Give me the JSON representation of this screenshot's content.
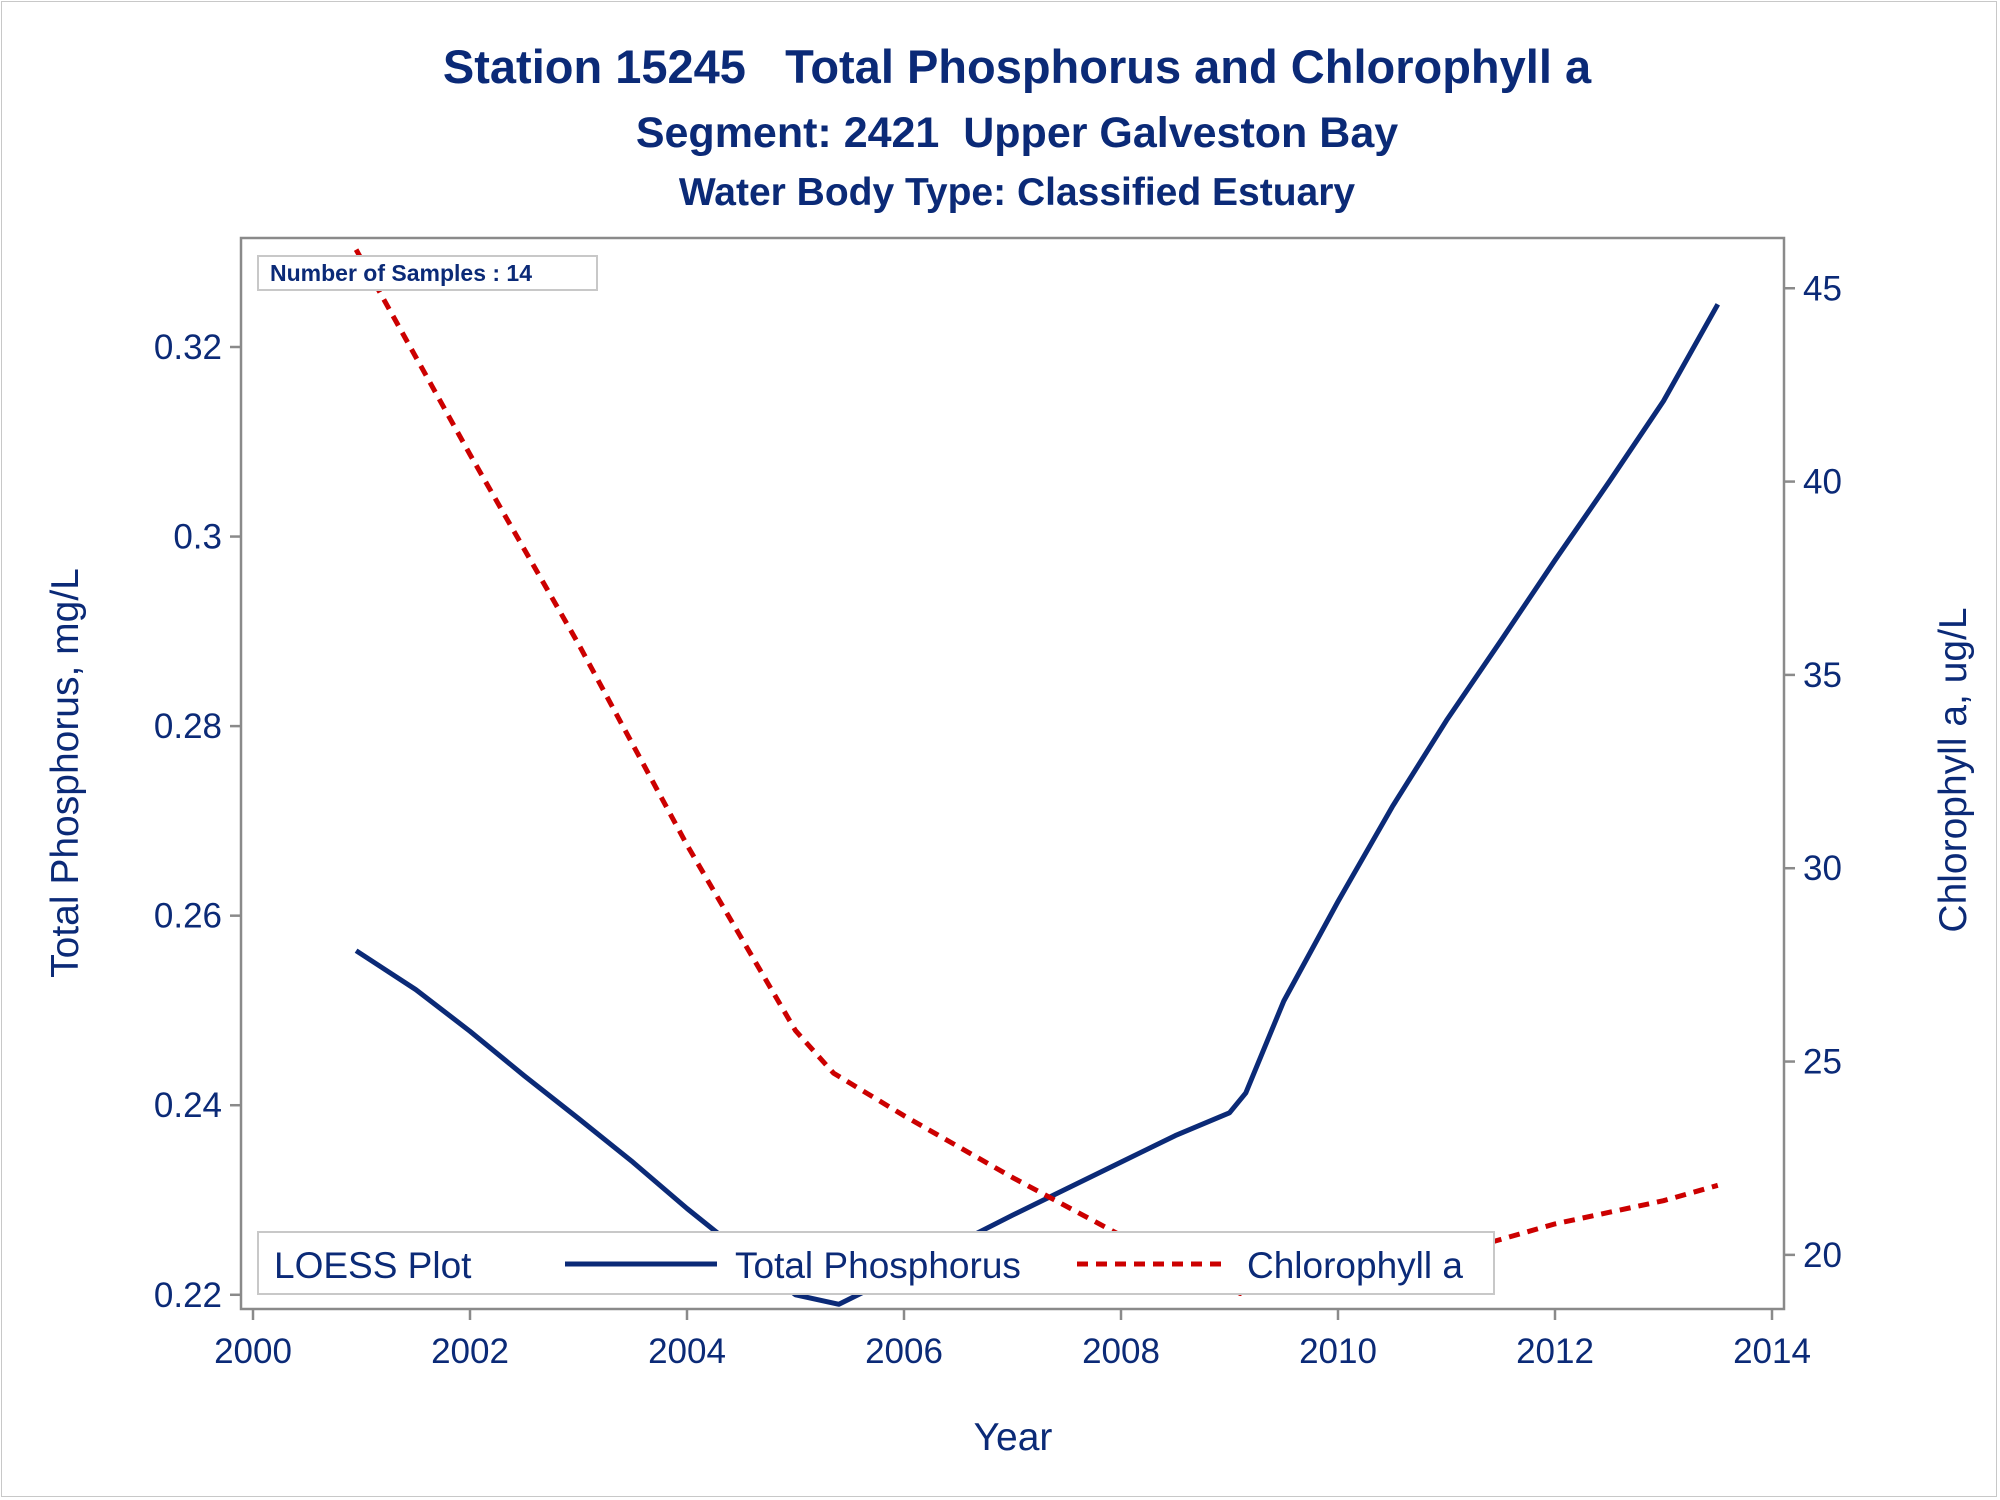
{
  "chart_data": {
    "type": "line",
    "title": "Station 15245   Total Phosphorus and Chlorophyll a",
    "subtitle": "Segment: 2421  Upper Galveston Bay",
    "subtitle2": "Water Body Type: Classified Estuary",
    "xlabel": "Year",
    "ylabel_left": "Total Phosphorus, mg/L",
    "ylabel_right": "Chlorophyll a, ug/L",
    "xlim": [
      2000,
      2014
    ],
    "ylim_left": [
      0.2185,
      0.3315
    ],
    "ylim_right": [
      18.6,
      46.3
    ],
    "x_ticks": [
      "2000",
      "2002",
      "2004",
      "2006",
      "2008",
      "2010",
      "2012",
      "2014"
    ],
    "y_left_ticks": [
      "0.22",
      "0.24",
      "0.26",
      "0.28",
      "0.3",
      "0.32"
    ],
    "y_right_ticks": [
      "20",
      "25",
      "30",
      "35",
      "40",
      "45"
    ],
    "annotation": "Number of Samples : 14",
    "grid": false,
    "legend": {
      "title": "LOESS Plot",
      "position": "bottom-left inside plot"
    },
    "series": [
      {
        "name": "Total Phosphorus",
        "axis": "left",
        "color": "#0b2a77",
        "style": "solid",
        "x": [
          2000.95,
          2001.5,
          2002,
          2002.5,
          2003,
          2003.5,
          2004,
          2004.5,
          2005,
          2005.4,
          2005.7,
          2006,
          2006.5,
          2007,
          2007.5,
          2008,
          2008.5,
          2009,
          2009.15,
          2009.5,
          2010,
          2010.5,
          2011,
          2011.5,
          2012,
          2012.5,
          2013,
          2013.5
        ],
        "values": [
          0.2563,
          0.2522,
          0.2478,
          0.2431,
          0.2386,
          0.234,
          0.2291,
          0.2245,
          0.22,
          0.219,
          0.2207,
          0.2223,
          0.2255,
          0.2284,
          0.2312,
          0.234,
          0.2368,
          0.2392,
          0.2413,
          0.251,
          0.2615,
          0.2715,
          0.2806,
          0.289,
          0.2975,
          0.3058,
          0.3143,
          0.3245
        ]
      },
      {
        "name": "Chlorophyll a",
        "axis": "right",
        "color": "#cc0000",
        "style": "dashed",
        "x": [
          2000.95,
          2002,
          2003,
          2004,
          2005,
          2005.35,
          2006,
          2007,
          2008,
          2009.1,
          2010,
          2011,
          2012,
          2013,
          2013.5
        ],
        "values": [
          46.0,
          40.7,
          35.8,
          30.6,
          25.8,
          24.7,
          23.6,
          22.0,
          20.5,
          19.0,
          19.5,
          20.0,
          20.8,
          21.4,
          21.8
        ]
      }
    ]
  }
}
